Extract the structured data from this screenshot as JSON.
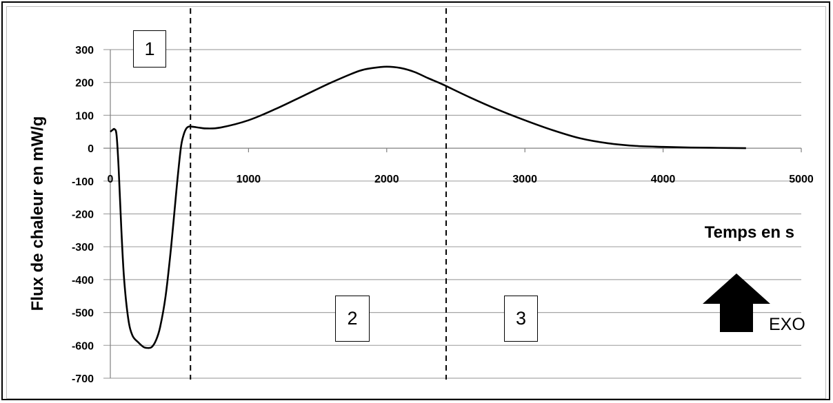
{
  "chart_data": {
    "type": "line",
    "title": "",
    "xlabel": "Temps en s",
    "ylabel": "Flux de chaleur en mW/g",
    "xlim": [
      0,
      5000
    ],
    "ylim": [
      -700,
      300
    ],
    "x_ticks": [
      0,
      1000,
      2000,
      3000,
      4000,
      5000
    ],
    "y_ticks": [
      300,
      200,
      100,
      0,
      -100,
      -200,
      -300,
      -400,
      -500,
      -600,
      -700
    ],
    "grid": "horizontal",
    "series": [
      {
        "x": [
          0,
          15,
          30,
          45,
          60,
          80,
          100,
          130,
          160,
          200,
          240,
          270,
          300,
          330,
          360,
          400,
          440,
          480,
          510,
          530,
          550,
          570,
          600,
          650,
          700,
          800,
          1000,
          1200,
          1400,
          1600,
          1800,
          1900,
          2000,
          2100,
          2200,
          2300,
          2400,
          2600,
          2800,
          3000,
          3200,
          3400,
          3600,
          3800,
          4000,
          4200,
          4400,
          4600
        ],
        "y": [
          50,
          55,
          58,
          40,
          -60,
          -250,
          -400,
          -520,
          -570,
          -590,
          -605,
          -608,
          -605,
          -585,
          -545,
          -450,
          -300,
          -120,
          0,
          40,
          60,
          66,
          65,
          62,
          60,
          63,
          85,
          120,
          160,
          200,
          235,
          244,
          248,
          244,
          232,
          213,
          195,
          155,
          118,
          85,
          55,
          30,
          15,
          7,
          4,
          2,
          1,
          0
        ]
      }
    ],
    "dividers_x": [
      580,
      2430
    ],
    "regions": [
      "1",
      "2",
      "3"
    ],
    "annotation": "EXO"
  },
  "colors": {
    "line": "#000000",
    "grid": "#a6a6a6",
    "arrow": "#000000"
  },
  "icons": {
    "exo": "up-arrow-icon"
  }
}
